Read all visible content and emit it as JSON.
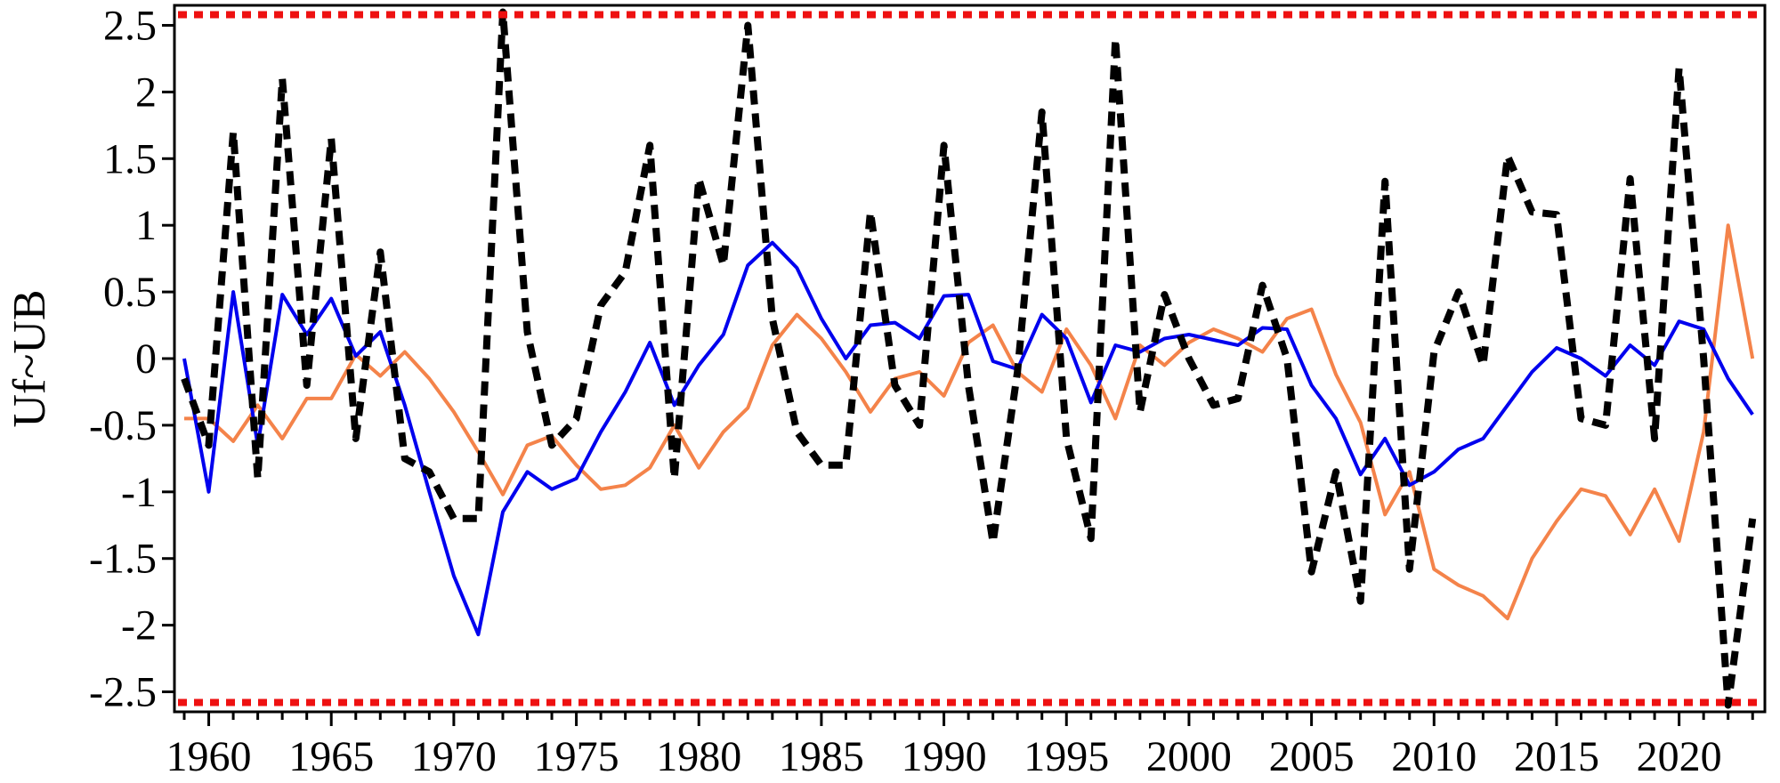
{
  "chart_data": {
    "type": "line",
    "ylabel": "Uf~UB",
    "xlabel": "",
    "title": "",
    "xlim": [
      1958.6,
      2023.5
    ],
    "ylim": [
      -2.65,
      2.65
    ],
    "xticks": [
      1960,
      1965,
      1970,
      1975,
      1980,
      1985,
      1990,
      1995,
      2000,
      2005,
      2010,
      2015,
      2020
    ],
    "yticks": [
      2.5,
      2,
      1.5,
      1,
      0.5,
      0,
      -0.5,
      -1,
      -1.5,
      -2,
      -2.5
    ],
    "ytick_labels": [
      "2.5",
      "2",
      "1.5",
      "1",
      "0.5",
      "0",
      "-0.5",
      "-1",
      "-1.5",
      "-2",
      "-2.5"
    ],
    "grid": false,
    "x": [
      1959,
      1960,
      1961,
      1962,
      1963,
      1964,
      1965,
      1966,
      1967,
      1968,
      1969,
      1970,
      1971,
      1972,
      1973,
      1974,
      1975,
      1976,
      1977,
      1978,
      1979,
      1980,
      1981,
      1982,
      1983,
      1984,
      1985,
      1986,
      1987,
      1988,
      1989,
      1990,
      1991,
      1992,
      1993,
      1994,
      1995,
      1996,
      1997,
      1998,
      1999,
      2000,
      2001,
      2002,
      2003,
      2004,
      2005,
      2006,
      2007,
      2008,
      2009,
      2010,
      2011,
      2012,
      2013,
      2014,
      2015,
      2016,
      2017,
      2018,
      2019,
      2020,
      2021,
      2022,
      2023
    ],
    "series": [
      {
        "color": "#0000ee",
        "style": "solid",
        "values": [
          0.0,
          -1.0,
          0.5,
          -0.65,
          0.48,
          0.18,
          0.45,
          0.02,
          0.2,
          -0.35,
          -1.0,
          -1.63,
          -2.07,
          -1.15,
          -0.85,
          -0.98,
          -0.9,
          -0.55,
          -0.25,
          0.12,
          -0.35,
          -0.05,
          0.18,
          0.7,
          0.87,
          0.68,
          0.3,
          0.0,
          0.25,
          0.27,
          0.15,
          0.47,
          0.48,
          -0.02,
          -0.08,
          0.33,
          0.15,
          -0.33,
          0.1,
          0.05,
          0.15,
          0.18,
          0.14,
          0.1,
          0.23,
          0.22,
          -0.2,
          -0.45,
          -0.87,
          -0.6,
          -0.95,
          -0.85,
          -0.68,
          -0.6,
          -0.35,
          -0.1,
          0.08,
          0.0,
          -0.13,
          0.1,
          -0.05,
          0.28,
          0.22,
          -0.15,
          -0.42
        ]
      },
      {
        "color": "#f4834a",
        "style": "solid",
        "values": [
          -0.45,
          -0.45,
          -0.62,
          -0.35,
          -0.6,
          -0.3,
          -0.3,
          0.03,
          -0.13,
          0.05,
          -0.15,
          -0.4,
          -0.7,
          -1.02,
          -0.65,
          -0.58,
          -0.8,
          -0.98,
          -0.95,
          -0.82,
          -0.5,
          -0.82,
          -0.55,
          -0.37,
          0.1,
          0.33,
          0.15,
          -0.1,
          -0.4,
          -0.15,
          -0.1,
          -0.28,
          0.12,
          0.25,
          -0.1,
          -0.25,
          0.22,
          -0.05,
          -0.45,
          0.1,
          -0.05,
          0.12,
          0.22,
          0.15,
          0.05,
          0.3,
          0.37,
          -0.12,
          -0.48,
          -1.17,
          -0.85,
          -1.58,
          -1.7,
          -1.78,
          -1.95,
          -1.5,
          -1.22,
          -0.98,
          -1.03,
          -1.32,
          -0.98,
          -1.37,
          -0.55,
          1.0,
          0.0
        ]
      },
      {
        "color": "#000000",
        "style": "dashed",
        "values": [
          -0.15,
          -0.65,
          1.7,
          -0.9,
          2.1,
          -0.2,
          1.65,
          -0.6,
          0.8,
          -0.75,
          -0.85,
          -1.2,
          -1.2,
          2.6,
          0.2,
          -0.65,
          -0.45,
          0.4,
          0.65,
          1.6,
          -0.9,
          1.35,
          0.7,
          2.5,
          0.3,
          -0.55,
          -0.8,
          -0.8,
          1.1,
          -0.2,
          -0.5,
          1.6,
          -0.2,
          -1.38,
          -0.1,
          1.85,
          -0.6,
          -1.35,
          2.4,
          -0.4,
          0.48,
          0.0,
          -0.35,
          -0.3,
          0.55,
          0.0,
          -1.6,
          -0.85,
          -1.82,
          1.33,
          -1.58,
          0.05,
          0.5,
          -0.05,
          1.52,
          1.1,
          1.08,
          -0.45,
          -0.5,
          1.35,
          -0.6,
          2.18,
          0.0,
          -2.6,
          -1.2
        ]
      }
    ],
    "thresholds": [
      {
        "value": 2.58,
        "color": "#ee1111",
        "style": "dotted"
      },
      {
        "value": -2.58,
        "color": "#ee1111",
        "style": "dotted"
      }
    ]
  }
}
